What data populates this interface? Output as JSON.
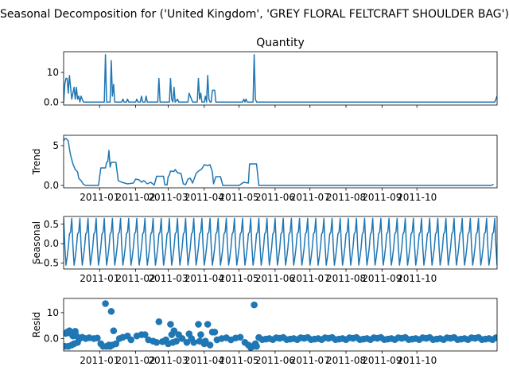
{
  "chart_data": {
    "type": "seasonal-decomposition",
    "suptitle": "Seasonal Decomposition for ('United Kingdom', 'GREY FLORAL FELTCRAFT SHOULDER BAG')",
    "x_tick_labels": [
      "2011-01",
      "2011-02",
      "2011-03",
      "2011-04",
      "2011-05",
      "2011-06",
      "2011-07",
      "2011-08",
      "2011-09",
      "2011-10"
    ],
    "x_range": [
      "2010-12-01",
      "2011-12-09"
    ],
    "line_color": "#1f77b4",
    "panels": [
      {
        "key": "observed",
        "title": "Quantity",
        "ylabel": "",
        "kind": "line",
        "ylim": [
          -1,
          17
        ],
        "yticks": [
          0,
          10
        ],
        "points": [
          [
            "2010-12-01",
            0
          ],
          [
            "2010-12-02",
            6
          ],
          [
            "2010-12-03",
            8
          ],
          [
            "2010-12-04",
            8
          ],
          [
            "2010-12-05",
            3
          ],
          [
            "2010-12-06",
            9
          ],
          [
            "2010-12-07",
            5
          ],
          [
            "2010-12-08",
            1
          ],
          [
            "2010-12-09",
            3
          ],
          [
            "2010-12-10",
            5
          ],
          [
            "2010-12-11",
            1
          ],
          [
            "2010-12-12",
            5
          ],
          [
            "2010-12-13",
            1
          ],
          [
            "2010-12-14",
            2
          ],
          [
            "2010-12-15",
            0
          ],
          [
            "2010-12-16",
            2
          ],
          [
            "2010-12-17",
            1
          ],
          [
            "2010-12-18",
            0
          ],
          [
            "2011-01-05",
            0
          ],
          [
            "2011-01-06",
            16
          ],
          [
            "2011-01-07",
            0
          ],
          [
            "2011-01-08",
            0
          ],
          [
            "2011-01-10",
            0
          ],
          [
            "2011-01-11",
            14
          ],
          [
            "2011-01-12",
            2
          ],
          [
            "2011-01-13",
            6
          ],
          [
            "2011-01-14",
            0
          ],
          [
            "2011-01-20",
            0
          ],
          [
            "2011-01-21",
            1
          ],
          [
            "2011-01-22",
            0
          ],
          [
            "2011-01-24",
            0
          ],
          [
            "2011-01-25",
            1
          ],
          [
            "2011-01-26",
            0
          ],
          [
            "2011-02-01",
            0
          ],
          [
            "2011-02-02",
            1
          ],
          [
            "2011-02-03",
            0
          ],
          [
            "2011-02-05",
            0
          ],
          [
            "2011-02-06",
            2
          ],
          [
            "2011-02-07",
            0
          ],
          [
            "2011-02-09",
            0
          ],
          [
            "2011-02-10",
            2
          ],
          [
            "2011-02-11",
            0
          ],
          [
            "2011-02-20",
            0
          ],
          [
            "2011-02-21",
            8
          ],
          [
            "2011-02-22",
            0
          ],
          [
            "2011-03-02",
            0
          ],
          [
            "2011-03-03",
            8
          ],
          [
            "2011-03-04",
            1
          ],
          [
            "2011-03-05",
            0
          ],
          [
            "2011-03-06",
            5
          ],
          [
            "2011-03-07",
            0
          ],
          [
            "2011-03-09",
            1
          ],
          [
            "2011-03-10",
            0
          ],
          [
            "2011-03-18",
            0
          ],
          [
            "2011-03-19",
            3
          ],
          [
            "2011-03-21",
            1
          ],
          [
            "2011-03-22",
            0
          ],
          [
            "2011-03-26",
            0
          ],
          [
            "2011-03-27",
            8
          ],
          [
            "2011-03-28",
            1
          ],
          [
            "2011-03-29",
            3
          ],
          [
            "2011-03-30",
            0
          ],
          [
            "2011-04-01",
            0
          ],
          [
            "2011-04-02",
            2
          ],
          [
            "2011-04-03",
            0
          ],
          [
            "2011-04-04",
            9
          ],
          [
            "2011-04-05",
            1
          ],
          [
            "2011-04-06",
            0
          ],
          [
            "2011-04-07",
            0
          ],
          [
            "2011-04-08",
            4
          ],
          [
            "2011-04-10",
            4
          ],
          [
            "2011-04-11",
            0
          ],
          [
            "2011-05-04",
            0
          ],
          [
            "2011-05-05",
            1
          ],
          [
            "2011-05-06",
            0
          ],
          [
            "2011-05-07",
            1
          ],
          [
            "2011-05-08",
            0
          ],
          [
            "2011-05-13",
            0
          ],
          [
            "2011-05-14",
            16
          ],
          [
            "2011-05-15",
            1
          ],
          [
            "2011-05-16",
            0
          ],
          [
            "2011-12-07",
            0
          ],
          [
            "2011-12-09",
            2
          ]
        ]
      },
      {
        "key": "trend",
        "title": "",
        "ylabel": "Trend",
        "kind": "line",
        "ylim": [
          -0.3,
          6.3
        ],
        "yticks": [
          0,
          5
        ],
        "points": [
          [
            "2010-12-01",
            5.6
          ],
          [
            "2010-12-02",
            5.85
          ],
          [
            "2010-12-03",
            5.9
          ],
          [
            "2010-12-05",
            5.6
          ],
          [
            "2010-12-06",
            4.6
          ],
          [
            "2010-12-07",
            3.8
          ],
          [
            "2010-12-09",
            2.7
          ],
          [
            "2010-12-11",
            2.0
          ],
          [
            "2010-12-13",
            1.7
          ],
          [
            "2010-12-14",
            0.9
          ],
          [
            "2010-12-16",
            0.6
          ],
          [
            "2010-12-18",
            0.15
          ],
          [
            "2010-12-20",
            0
          ],
          [
            "2010-12-31",
            0
          ],
          [
            "2011-01-02",
            2.2
          ],
          [
            "2011-01-06",
            2.2
          ],
          [
            "2011-01-07",
            2.9
          ],
          [
            "2011-01-08",
            3.0
          ],
          [
            "2011-01-09",
            4.4
          ],
          [
            "2011-01-10",
            2.3
          ],
          [
            "2011-01-11",
            2.9
          ],
          [
            "2011-01-15",
            2.9
          ],
          [
            "2011-01-17",
            0.6
          ],
          [
            "2011-01-20",
            0.4
          ],
          [
            "2011-01-25",
            0.2
          ],
          [
            "2011-01-30",
            0.3
          ],
          [
            "2011-02-01",
            0.8
          ],
          [
            "2011-02-04",
            0.7
          ],
          [
            "2011-02-06",
            0.4
          ],
          [
            "2011-02-08",
            0.6
          ],
          [
            "2011-02-11",
            0.2
          ],
          [
            "2011-02-14",
            0.4
          ],
          [
            "2011-02-17",
            0.05
          ],
          [
            "2011-02-19",
            1.15
          ],
          [
            "2011-02-25",
            1.15
          ],
          [
            "2011-02-26",
            0.1
          ],
          [
            "2011-02-28",
            0.05
          ],
          [
            "2011-03-01",
            1.1
          ],
          [
            "2011-03-02",
            1.3
          ],
          [
            "2011-03-03",
            1.8
          ],
          [
            "2011-03-06",
            1.75
          ],
          [
            "2011-03-07",
            2.0
          ],
          [
            "2011-03-09",
            1.6
          ],
          [
            "2011-03-12",
            1.5
          ],
          [
            "2011-03-14",
            0.2
          ],
          [
            "2011-03-16",
            0.1
          ],
          [
            "2011-03-18",
            0.8
          ],
          [
            "2011-03-20",
            0.9
          ],
          [
            "2011-03-22",
            0.3
          ],
          [
            "2011-03-25",
            1.5
          ],
          [
            "2011-03-27",
            1.8
          ],
          [
            "2011-03-30",
            2.1
          ],
          [
            "2011-04-01",
            2.6
          ],
          [
            "2011-04-04",
            2.5
          ],
          [
            "2011-04-06",
            2.6
          ],
          [
            "2011-04-08",
            1.7
          ],
          [
            "2011-04-09",
            0.2
          ],
          [
            "2011-04-11",
            1.1
          ],
          [
            "2011-04-15",
            1.1
          ],
          [
            "2011-04-17",
            0
          ],
          [
            "2011-05-01",
            0
          ],
          [
            "2011-05-05",
            0.4
          ],
          [
            "2011-05-09",
            0.3
          ],
          [
            "2011-05-10",
            2.7
          ],
          [
            "2011-05-16",
            2.7
          ],
          [
            "2011-05-18",
            0
          ],
          [
            "2011-12-04",
            0
          ],
          [
            "2011-12-06",
            0.15
          ]
        ]
      },
      {
        "key": "seasonal",
        "title": "",
        "ylabel": "Seasonal",
        "kind": "periodic",
        "ylim": [
          -0.65,
          0.7
        ],
        "yticks": [
          -0.5,
          0.0,
          0.5
        ],
        "period_days": 7,
        "pattern": [
          0.65,
          -0.05,
          -0.55,
          -0.35,
          -0.1,
          0.25,
          0.3
        ]
      },
      {
        "key": "resid",
        "title": "",
        "ylabel": "Resid",
        "kind": "scatter",
        "ylim": [
          -4.8,
          15.5
        ],
        "yticks": [
          0,
          10
        ],
        "points": [
          [
            "2010-12-02",
            -3
          ],
          [
            "2010-12-03",
            2
          ],
          [
            "2010-12-04",
            2.5
          ],
          [
            "2010-12-05",
            -3
          ],
          [
            "2010-12-06",
            3
          ],
          [
            "2010-12-07",
            2
          ],
          [
            "2010-12-08",
            -2.5
          ],
          [
            "2010-12-09",
            1
          ],
          [
            "2010-12-10",
            -2
          ],
          [
            "2010-12-11",
            2.8
          ],
          [
            "2010-12-12",
            1
          ],
          [
            "2010-12-13",
            -1.5
          ],
          [
            "2010-12-15",
            0
          ],
          [
            "2010-12-17",
            0.5
          ],
          [
            "2010-12-20",
            0
          ],
          [
            "2010-12-23",
            0.3
          ],
          [
            "2010-12-27",
            0
          ],
          [
            "2010-12-30",
            0.2
          ],
          [
            "2011-01-02",
            -2
          ],
          [
            "2011-01-04",
            -3
          ],
          [
            "2011-01-06",
            13.5
          ],
          [
            "2011-01-07",
            -3
          ],
          [
            "2011-01-09",
            -2.5
          ],
          [
            "2011-01-10",
            -3
          ],
          [
            "2011-01-11",
            10.5
          ],
          [
            "2011-01-12",
            -2.5
          ],
          [
            "2011-01-13",
            3
          ],
          [
            "2011-01-15",
            -2
          ],
          [
            "2011-01-18",
            0
          ],
          [
            "2011-01-21",
            0.5
          ],
          [
            "2011-01-25",
            1
          ],
          [
            "2011-01-28",
            -0.5
          ],
          [
            "2011-02-02",
            1
          ],
          [
            "2011-02-06",
            1.5
          ],
          [
            "2011-02-09",
            1.5
          ],
          [
            "2011-02-12",
            -0.5
          ],
          [
            "2011-02-16",
            -1
          ],
          [
            "2011-02-19",
            -1.5
          ],
          [
            "2011-02-21",
            6.5
          ],
          [
            "2011-02-24",
            -1.2
          ],
          [
            "2011-02-27",
            -0.5
          ],
          [
            "2011-03-01",
            -2
          ],
          [
            "2011-03-03",
            5.5
          ],
          [
            "2011-03-04",
            1.5
          ],
          [
            "2011-03-05",
            -1.5
          ],
          [
            "2011-03-06",
            3
          ],
          [
            "2011-03-08",
            -1
          ],
          [
            "2011-03-10",
            1.5
          ],
          [
            "2011-03-13",
            0
          ],
          [
            "2011-03-17",
            -1.5
          ],
          [
            "2011-03-19",
            1.8
          ],
          [
            "2011-03-21",
            0
          ],
          [
            "2011-03-23",
            -1.5
          ],
          [
            "2011-03-27",
            5.5
          ],
          [
            "2011-03-28",
            -1
          ],
          [
            "2011-03-29",
            1.5
          ],
          [
            "2011-04-01",
            -2
          ],
          [
            "2011-04-02",
            -1
          ],
          [
            "2011-04-04",
            5.5
          ],
          [
            "2011-04-06",
            -2.5
          ],
          [
            "2011-04-08",
            2.5
          ],
          [
            "2011-04-10",
            2.5
          ],
          [
            "2011-04-12",
            -0.5
          ],
          [
            "2011-04-16",
            0
          ],
          [
            "2011-04-20",
            0.3
          ],
          [
            "2011-04-24",
            -0.5
          ],
          [
            "2011-04-28",
            0.2
          ],
          [
            "2011-05-02",
            0.5
          ],
          [
            "2011-05-06",
            -1.5
          ],
          [
            "2011-05-09",
            -2.5
          ],
          [
            "2011-05-11",
            -3.5
          ],
          [
            "2011-05-13",
            -3
          ],
          [
            "2011-05-14",
            13
          ],
          [
            "2011-05-15",
            -2
          ],
          [
            "2011-05-16",
            -3
          ]
        ],
        "tail_start": "2011-05-18",
        "tail_period_days": 7,
        "tail_pattern": [
          0.4,
          -0.4,
          -0.2,
          0.0,
          -0.4,
          0.3,
          0.1
        ]
      }
    ]
  }
}
